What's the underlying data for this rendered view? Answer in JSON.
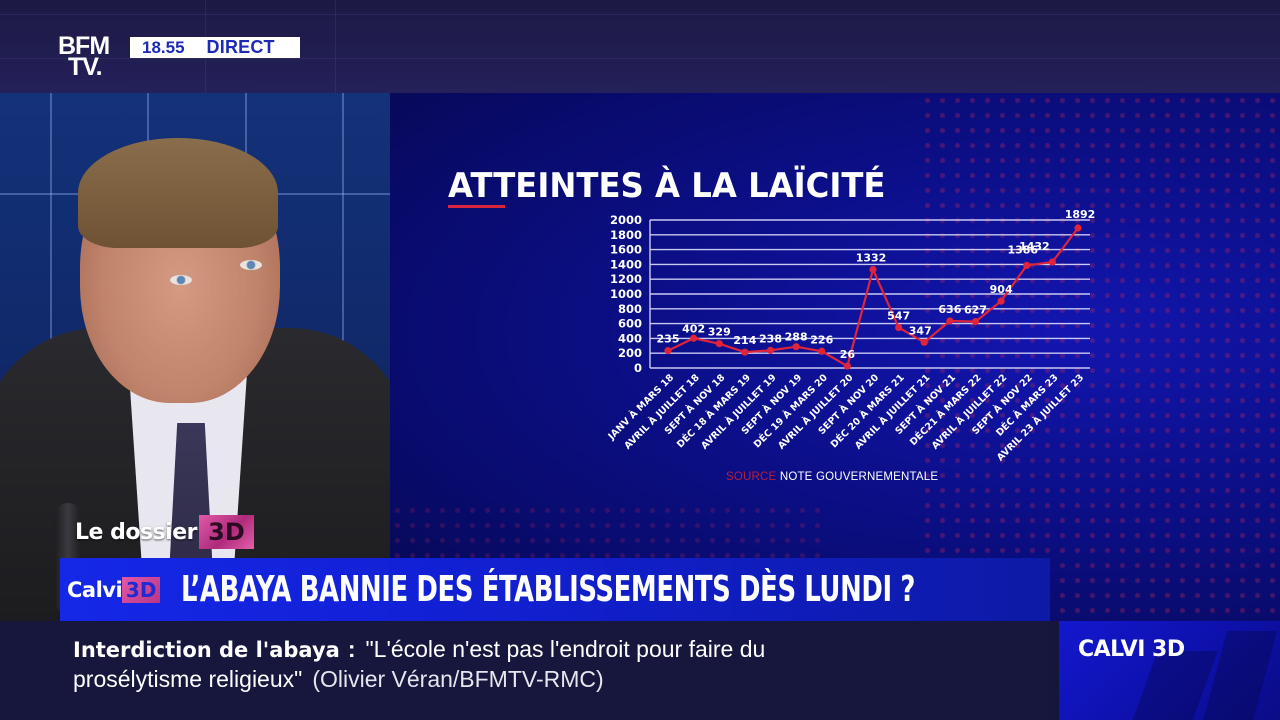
{
  "channel": {
    "logo_line1": "BFM",
    "logo_line2": "TV.",
    "time": "18.55",
    "live_label": "DIRECT"
  },
  "graphic": {
    "title": "ATTEINTES À LA LAÏCITÉ",
    "source_label": "SOURCE",
    "source_text": "NOTE GOUVERNEMENTALE"
  },
  "segment": {
    "dossier_label": "Le dossier",
    "dossier_badge": "3D"
  },
  "headline": {
    "show_tag": "Calvi",
    "show_tag_badge": "3D",
    "text": "L’ABAYA BANNIE DES ÉTABLISSEMENTS DÈS LUNDI ?"
  },
  "ticker": {
    "topic": "Interdiction de l'abaya",
    "separator": ":",
    "quote_line1": "\"L'école n'est pas l'endroit pour faire du",
    "quote_line2": "prosélytisme religieux\"",
    "attribution": "(Olivier Véran/BFMTV-RMC)"
  },
  "show_box": {
    "label": "CALVI 3D"
  },
  "colors": {
    "brand_blue": "#1d2ab5",
    "headline_blue": "#1528e6",
    "accent_red": "#d8243c",
    "line_red": "#e0243a",
    "badge_pink": "#e05aa8",
    "ticker_bg": "#17173d"
  },
  "chart_data": {
    "type": "line",
    "title": "ATTEINTES À LA LAÏCITÉ",
    "xlabel": "",
    "ylabel": "",
    "ylim": [
      0,
      2000
    ],
    "yticks": [
      0,
      200,
      400,
      600,
      800,
      1000,
      1200,
      1400,
      1600,
      1800,
      2000
    ],
    "grid": true,
    "legend": null,
    "source": "SOURCE NOTE GOUVERNEMENTALE",
    "categories": [
      "JANV À MARS 18",
      "AVRIL À JUILLET 18",
      "SEPT À NOV 18",
      "DÉC 18 À MARS 19",
      "AVRIL À JUILLET 19",
      "SEPT À NOV 19",
      "DÉC 19 À MARS 20",
      "AVRIL À JUILLET 20",
      "SEPT À NOV 20",
      "DÉC 20 À MARS 21",
      "AVRIL À JUILLET 21",
      "SEPT À NOV 21",
      "DÉC21 À MARS 22",
      "AVRIL À JUILLET 22",
      "SEPT À NOV 22",
      "DÉC À MARS 23",
      "AVRIL 23 À JUILLET 23"
    ],
    "values": [
      235,
      402,
      329,
      214,
      238,
      288,
      226,
      26,
      1332,
      547,
      347,
      636,
      627,
      904,
      1386,
      1432,
      1892
    ],
    "series": [
      {
        "name": "Atteintes à la laïcité",
        "values": [
          235,
          402,
          329,
          214,
          238,
          288,
          226,
          26,
          1332,
          547,
          347,
          636,
          627,
          904,
          1386,
          1432,
          1892
        ]
      }
    ]
  }
}
